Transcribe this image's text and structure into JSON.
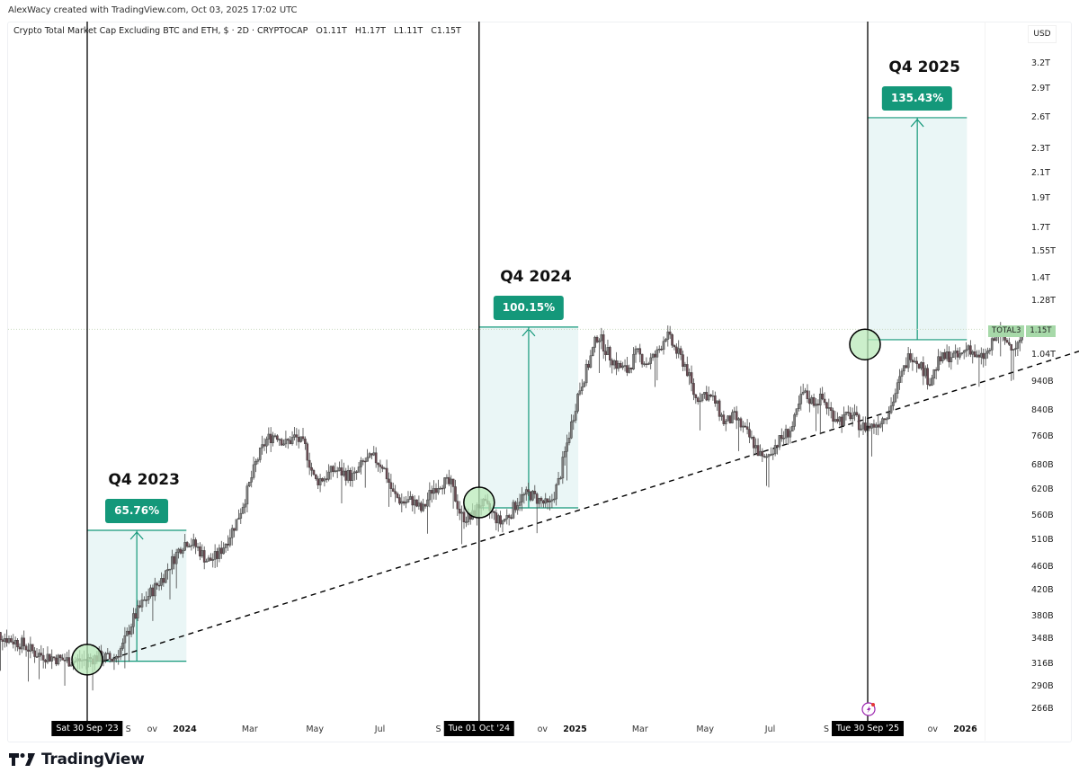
{
  "credit": "AlexWacy created with TradingView.com, Oct 03, 2025 17:02 UTC",
  "legend": {
    "symbol_desc": "Crypto Total Market Cap Excluding BTC and ETH, $ · 2D · CRYPTOCAP",
    "open": "O1.11T",
    "high": "H1.17T",
    "low": "L1.11T",
    "close": "C1.15T"
  },
  "currency": "USD",
  "last_price_tag": {
    "symbol": "TOTAL3",
    "value": "1.15T"
  },
  "brand": {
    "name": "TradingView",
    "logo_icon": "tradingview-logo-icon"
  },
  "alert_icon": "lightning-alert-icon",
  "colors": {
    "accent_green": "#14987a",
    "measure_fill": "#eaf6f6",
    "circle_fill": "#b9eab9",
    "candle_up": "#7f7f7f",
    "candle_down": "#6b4a52",
    "trendline": "#000000",
    "last_tag": "#a7d9a9"
  },
  "chart_data": {
    "type": "candlestick",
    "title": "Crypto Total Market Cap Excluding BTC and ETH (TOTAL3)",
    "timeframe": "2D",
    "exchange": "CRYPTOCAP",
    "y_scale": "log",
    "ylim": [
      255,
      3400
    ],
    "y_unit": "B USD",
    "y_ticks": [
      {
        "label": "3.2T",
        "value": 3200
      },
      {
        "label": "2.9T",
        "value": 2900
      },
      {
        "label": "2.6T",
        "value": 2600
      },
      {
        "label": "2.3T",
        "value": 2300
      },
      {
        "label": "2.1T",
        "value": 2100
      },
      {
        "label": "1.9T",
        "value": 1900
      },
      {
        "label": "1.7T",
        "value": 1700
      },
      {
        "label": "1.55T",
        "value": 1550
      },
      {
        "label": "1.4T",
        "value": 1400
      },
      {
        "label": "1.28T",
        "value": 1280
      },
      {
        "label": "1.04T",
        "value": 1040
      },
      {
        "label": "940B",
        "value": 940
      },
      {
        "label": "840B",
        "value": 840
      },
      {
        "label": "760B",
        "value": 760
      },
      {
        "label": "680B",
        "value": 680
      },
      {
        "label": "620B",
        "value": 620
      },
      {
        "label": "560B",
        "value": 560
      },
      {
        "label": "510B",
        "value": 510
      },
      {
        "label": "460B",
        "value": 460
      },
      {
        "label": "420B",
        "value": 420
      },
      {
        "label": "380B",
        "value": 380
      },
      {
        "label": "348B",
        "value": 348
      },
      {
        "label": "316B",
        "value": 316
      },
      {
        "label": "290B",
        "value": 290
      },
      {
        "label": "266B",
        "value": 266
      }
    ],
    "x_ticks": [
      {
        "label": "S",
        "month": 0,
        "bold": false
      },
      {
        "label": "ov",
        "month": 2,
        "bold": false
      },
      {
        "label": "2024",
        "month": 3,
        "bold": true
      },
      {
        "label": "Mar",
        "month": 5,
        "bold": false
      },
      {
        "label": "May",
        "month": 7,
        "bold": false
      },
      {
        "label": "Jul",
        "month": 9,
        "bold": false
      },
      {
        "label": "S",
        "month": 11,
        "bold": false
      },
      {
        "label": "ov",
        "month": 14,
        "bold": false
      },
      {
        "label": "2025",
        "month": 15,
        "bold": true
      },
      {
        "label": "Mar",
        "month": 17,
        "bold": false
      },
      {
        "label": "May",
        "month": 19,
        "bold": false
      },
      {
        "label": "Jul",
        "month": 21,
        "bold": false
      },
      {
        "label": "S",
        "month": 23,
        "bold": false
      },
      {
        "label": "ov",
        "month": 26,
        "bold": false
      },
      {
        "label": "2026",
        "month": 27,
        "bold": true
      }
    ],
    "x_axis_note": "month index 0 = Sep 2023 (approx)",
    "price_path": [
      [
        -3.0,
        360
      ],
      [
        -2.5,
        350
      ],
      [
        -2.0,
        342
      ],
      [
        -1.6,
        330
      ],
      [
        -1.2,
        326
      ],
      [
        -0.8,
        322
      ],
      [
        -0.4,
        320
      ],
      [
        0.0,
        322
      ],
      [
        0.4,
        326
      ],
      [
        0.8,
        322
      ],
      [
        1.1,
        340
      ],
      [
        1.4,
        375
      ],
      [
        1.7,
        400
      ],
      [
        2.0,
        420
      ],
      [
        2.3,
        440
      ],
      [
        2.6,
        470
      ],
      [
        2.9,
        500
      ],
      [
        3.1,
        510
      ],
      [
        3.4,
        495
      ],
      [
        3.7,
        470
      ],
      [
        4.0,
        480
      ],
      [
        4.3,
        510
      ],
      [
        4.6,
        550
      ],
      [
        4.9,
        610
      ],
      [
        5.2,
        690
      ],
      [
        5.5,
        750
      ],
      [
        5.8,
        770
      ],
      [
        6.1,
        740
      ],
      [
        6.4,
        760
      ],
      [
        6.7,
        730
      ],
      [
        7.0,
        640
      ],
      [
        7.3,
        650
      ],
      [
        7.6,
        670
      ],
      [
        7.9,
        660
      ],
      [
        8.2,
        650
      ],
      [
        8.5,
        690
      ],
      [
        8.8,
        700
      ],
      [
        9.1,
        680
      ],
      [
        9.4,
        610
      ],
      [
        9.7,
        590
      ],
      [
        10.0,
        595
      ],
      [
        10.3,
        570
      ],
      [
        10.6,
        620
      ],
      [
        10.9,
        640
      ],
      [
        11.2,
        630
      ],
      [
        11.5,
        560
      ],
      [
        11.8,
        555
      ],
      [
        12.1,
        590
      ],
      [
        12.4,
        570
      ],
      [
        12.7,
        545
      ],
      [
        13.0,
        565
      ],
      [
        13.3,
        600
      ],
      [
        13.6,
        610
      ],
      [
        13.9,
        595
      ],
      [
        14.2,
        580
      ],
      [
        14.5,
        640
      ],
      [
        14.8,
        760
      ],
      [
        15.1,
        900
      ],
      [
        15.4,
        1000
      ],
      [
        15.7,
        1130
      ],
      [
        16.0,
        1050
      ],
      [
        16.3,
        1000
      ],
      [
        16.6,
        980
      ],
      [
        16.9,
        1050
      ],
      [
        17.2,
        1010
      ],
      [
        17.5,
        1040
      ],
      [
        17.8,
        1130
      ],
      [
        18.1,
        1060
      ],
      [
        18.4,
        1000
      ],
      [
        18.7,
        880
      ],
      [
        19.0,
        900
      ],
      [
        19.3,
        870
      ],
      [
        19.6,
        800
      ],
      [
        19.9,
        820
      ],
      [
        20.2,
        780
      ],
      [
        20.5,
        740
      ],
      [
        20.8,
        690
      ],
      [
        21.1,
        730
      ],
      [
        21.4,
        760
      ],
      [
        21.7,
        790
      ],
      [
        22.0,
        900
      ],
      [
        22.3,
        870
      ],
      [
        22.6,
        880
      ],
      [
        22.9,
        830
      ],
      [
        23.2,
        810
      ],
      [
        23.5,
        830
      ],
      [
        23.8,
        790
      ],
      [
        24.1,
        790
      ],
      [
        24.4,
        810
      ],
      [
        24.7,
        850
      ],
      [
        25.0,
        950
      ],
      [
        25.3,
        1050
      ],
      [
        25.6,
        1010
      ],
      [
        25.9,
        940
      ],
      [
        26.2,
        1020
      ],
      [
        26.5,
        1040
      ],
      [
        26.8,
        1030
      ],
      [
        27.1,
        1080
      ],
      [
        27.4,
        1020
      ],
      [
        27.7,
        1050
      ],
      [
        28.0,
        1140
      ],
      [
        28.3,
        1090
      ],
      [
        28.6,
        1080
      ],
      [
        28.8,
        1150
      ]
    ],
    "annotations": [
      {
        "title": "Q4 2023",
        "start_date": "Sat 30 Sep '23",
        "change_label": "65.76%",
        "base_value": 320,
        "top_value": 530
      },
      {
        "title": "Q4 2024",
        "start_date": "Tue 01 Oct '24",
        "change_label": "100.15%",
        "base_value": 578,
        "top_value": 1160
      },
      {
        "title": "Q4 2025",
        "start_date": "Tue 30 Sep '25",
        "change_label": "135.43%",
        "base_value": 1105,
        "top_value": 2600
      }
    ],
    "trendline": {
      "style": "dashed",
      "from": {
        "month": 0.5,
        "value": 320
      },
      "to": {
        "month": 31.5,
        "value": 1100
      }
    },
    "last_price": {
      "label": "1.15T",
      "value": 1150
    },
    "grid": false,
    "legend_position": "top-left"
  }
}
